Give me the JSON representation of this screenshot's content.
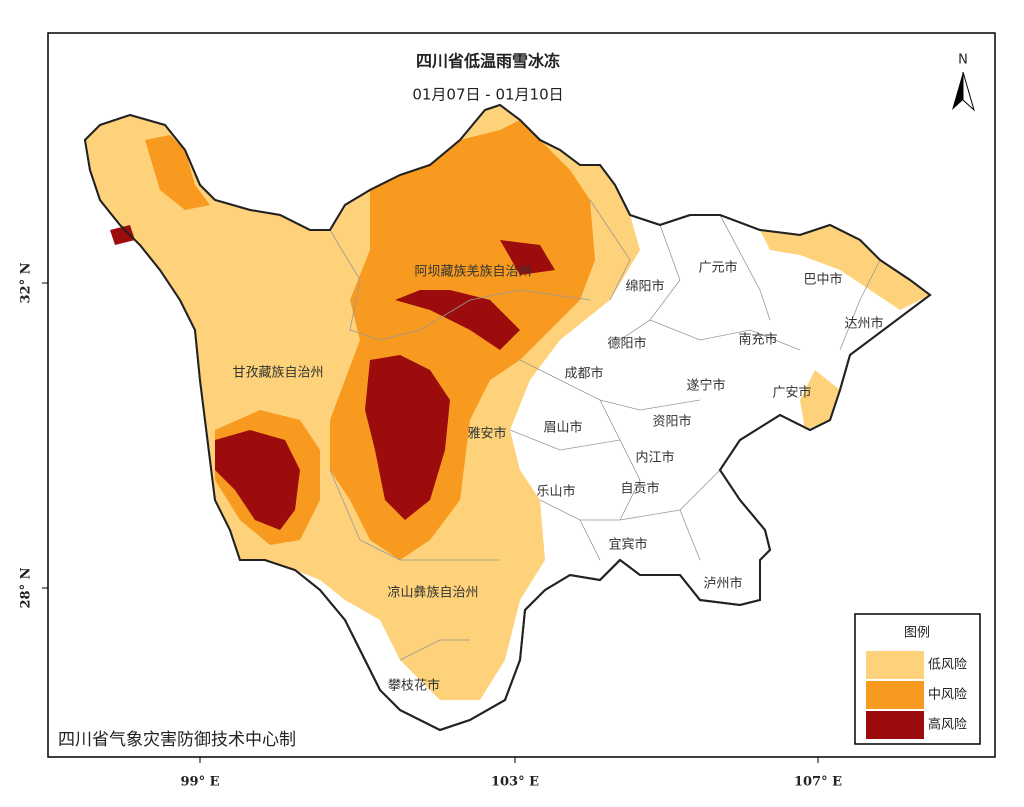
{
  "title": "四川省低温雨雪冰冻",
  "subtitle": "01月07日 - 01月10日",
  "north": "N",
  "lat_labels": [
    "32° N",
    "28° N"
  ],
  "lon_labels": [
    "99° E",
    "103° E",
    "107° E"
  ],
  "cities": [
    "广元市",
    "巴中市",
    "绵阳市",
    "阿坝藏族羌族自治州",
    "达州市",
    "德阳市",
    "南充市",
    "甘孜藏族自治州",
    "成都市",
    "遂宁市",
    "广安市",
    "资阳市",
    "雅安市",
    "眉山市",
    "内江市",
    "乐山市",
    "自贡市",
    "宜宾市",
    "泸州市",
    "凉山彝族自治州",
    "攀枝花市"
  ],
  "legend": {
    "title": "图例",
    "items": [
      {
        "label": "低风险",
        "color": "#fdd27a"
      },
      {
        "label": "中风险",
        "color": "#f79a1f"
      },
      {
        "label": "高风险",
        "color": "#9c0c0c"
      }
    ]
  },
  "credit": "四川省气象灾害防御技术中心制"
}
